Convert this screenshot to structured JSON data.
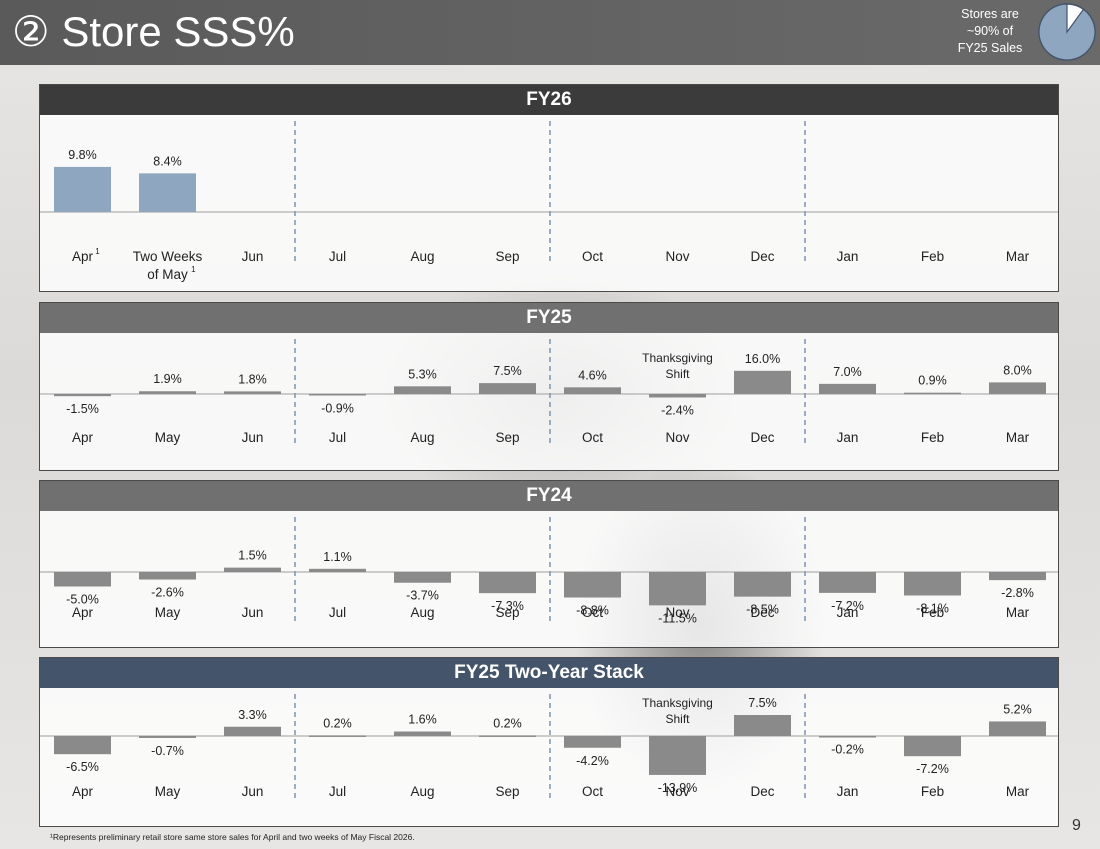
{
  "title": "② Store SSS%",
  "stores_note": [
    "Stores are",
    "~90% of",
    "FY25 Sales"
  ],
  "stores_share_pct": 90,
  "colors": {
    "title_bar": "#5e5e5e",
    "fy26_bar": "#8fa6c1",
    "bar": "#8a8a8a",
    "fy26_header": "#3b3b3b",
    "fy25_header": "#707070",
    "fy24_header": "#707070",
    "stack_header": "#44546a",
    "pie_fill": "#8fa6c1"
  },
  "chart_data": [
    {
      "type": "bar",
      "title": "FY26",
      "categories": [
        "Apr",
        "Two Weeks of May",
        "Jun",
        "Jul",
        "Aug",
        "Sep",
        "Oct",
        "Nov",
        "Dec",
        "Jan",
        "Feb",
        "Mar"
      ],
      "category_superscripts": [
        "1",
        "1",
        "",
        "",
        "",
        "",
        "",
        "",
        "",
        "",
        "",
        ""
      ],
      "values": [
        9.8,
        8.4,
        null,
        null,
        null,
        null,
        null,
        null,
        null,
        null,
        null,
        null
      ],
      "labels": [
        "9.8%",
        "8.4%",
        "",
        "",
        "",
        "",
        "",
        "",
        "",
        "",
        "",
        ""
      ],
      "annotations": [],
      "quarter_dividers": true
    },
    {
      "type": "bar",
      "title": "FY25",
      "categories": [
        "Apr",
        "May",
        "Jun",
        "Jul",
        "Aug",
        "Sep",
        "Oct",
        "Nov",
        "Dec",
        "Jan",
        "Feb",
        "Mar"
      ],
      "values": [
        -1.5,
        1.9,
        1.8,
        -0.9,
        5.3,
        7.5,
        4.6,
        -2.4,
        16.0,
        7.0,
        0.9,
        8.0
      ],
      "labels": [
        "-1.5%",
        "1.9%",
        "1.8%",
        "-0.9%",
        "5.3%",
        "7.5%",
        "4.6%",
        "-2.4%",
        "16.0%",
        "7.0%",
        "0.9%",
        "8.0%"
      ],
      "annotations": [
        {
          "category": "Nov",
          "text": [
            "Thanksgiving",
            "Shift"
          ]
        }
      ],
      "quarter_dividers": true
    },
    {
      "type": "bar",
      "title": "FY24",
      "categories": [
        "Apr",
        "May",
        "Jun",
        "Jul",
        "Aug",
        "Sep",
        "Oct",
        "Nov",
        "Dec",
        "Jan",
        "Feb",
        "Mar"
      ],
      "values": [
        -5.0,
        -2.6,
        1.5,
        1.1,
        -3.7,
        -7.3,
        -8.8,
        -11.5,
        -8.5,
        -7.2,
        -8.1,
        -2.8
      ],
      "labels": [
        "-5.0%",
        "-2.6%",
        "1.5%",
        "1.1%",
        "-3.7%",
        "-7.3%",
        "-8.8%",
        "-11.5%",
        "-8.5%",
        "-7.2%",
        "-8.1%",
        "-2.8%"
      ],
      "annotations": [],
      "quarter_dividers": true
    },
    {
      "type": "bar",
      "title": "FY25 Two-Year Stack",
      "categories": [
        "Apr",
        "May",
        "Jun",
        "Jul",
        "Aug",
        "Sep",
        "Oct",
        "Nov",
        "Dec",
        "Jan",
        "Feb",
        "Mar"
      ],
      "values": [
        -6.5,
        -0.7,
        3.3,
        0.2,
        1.6,
        0.2,
        -4.2,
        -13.9,
        7.5,
        -0.2,
        -7.2,
        5.2
      ],
      "labels": [
        "-6.5%",
        "-0.7%",
        "3.3%",
        "0.2%",
        "1.6%",
        "0.2%",
        "-4.2%",
        "-13.9%",
        "7.5%",
        "-0.2%",
        "-7.2%",
        "5.2%"
      ],
      "annotations": [
        {
          "category": "Nov",
          "text": [
            "Thanksgiving",
            "Shift"
          ]
        }
      ],
      "quarter_dividers": true
    }
  ],
  "footnote": "¹Represents preliminary retail store same store sales for April and two weeks of May Fiscal 2026.",
  "page_number": "9"
}
